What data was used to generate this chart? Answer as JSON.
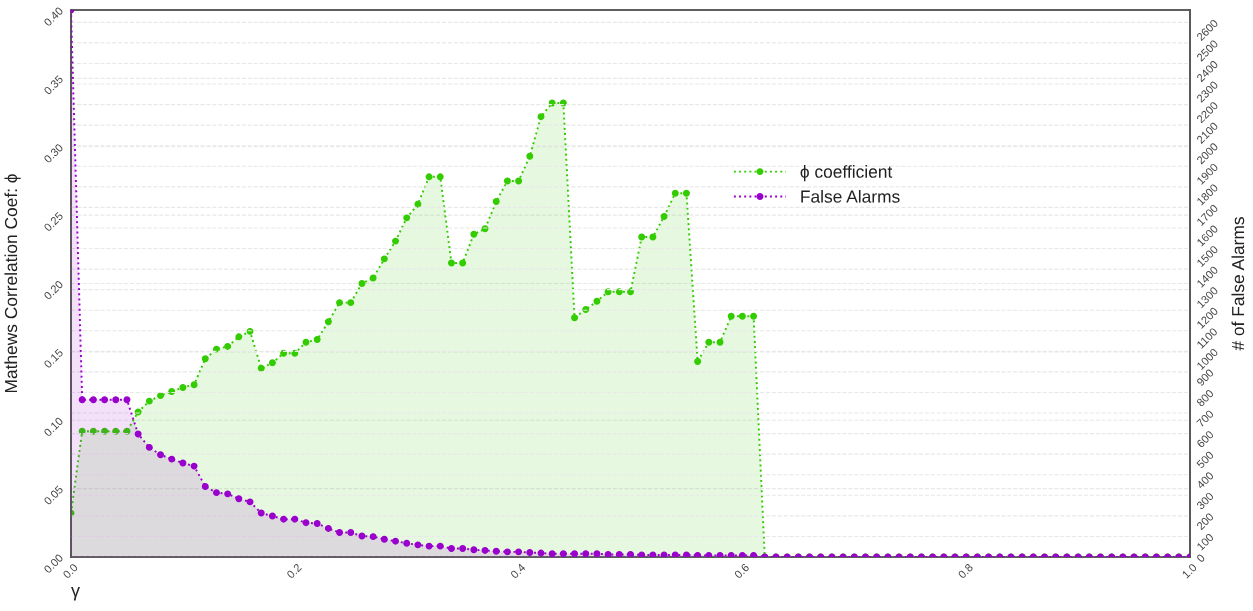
{
  "chart_data": {
    "type": "area",
    "xlabel": "γ",
    "ylabel": "Mathews Correlation Coef: ϕ",
    "y2label": "# of False Alarms",
    "x": [
      0.0,
      0.01,
      0.02,
      0.03,
      0.04,
      0.05,
      0.06,
      0.07,
      0.08,
      0.09,
      0.1,
      0.11,
      0.12,
      0.13,
      0.14,
      0.15,
      0.16,
      0.17,
      0.18,
      0.19,
      0.2,
      0.21,
      0.22,
      0.23,
      0.24,
      0.25,
      0.26,
      0.27,
      0.28,
      0.29,
      0.3,
      0.31,
      0.32,
      0.33,
      0.34,
      0.35,
      0.36,
      0.37,
      0.38,
      0.39,
      0.4,
      0.41,
      0.42,
      0.43,
      0.44,
      0.45,
      0.46,
      0.47,
      0.48,
      0.49,
      0.5,
      0.51,
      0.52,
      0.53,
      0.54,
      0.55,
      0.56,
      0.57,
      0.58,
      0.59,
      0.6,
      0.61,
      0.62,
      0.63,
      0.64,
      0.65,
      0.66,
      0.67,
      0.68,
      0.69,
      0.7,
      0.71,
      0.72,
      0.73,
      0.74,
      0.75,
      0.76,
      0.77,
      0.78,
      0.79,
      0.8,
      0.81,
      0.82,
      0.83,
      0.84,
      0.85,
      0.86,
      0.87,
      0.88,
      0.89,
      0.9,
      0.91,
      0.92,
      0.93,
      0.94,
      0.95,
      0.96,
      0.97,
      0.98,
      0.99,
      1.0
    ],
    "series": [
      {
        "name": "ϕ coefficient",
        "color": "#33cc00",
        "values": [
          0.032,
          0.092,
          0.092,
          0.092,
          0.092,
          0.092,
          0.106,
          0.114,
          0.118,
          0.121,
          0.124,
          0.126,
          0.145,
          0.152,
          0.154,
          0.161,
          0.165,
          0.138,
          0.142,
          0.149,
          0.149,
          0.157,
          0.159,
          0.172,
          0.186,
          0.186,
          0.2,
          0.204,
          0.218,
          0.231,
          0.248,
          0.258,
          0.278,
          0.278,
          0.215,
          0.215,
          0.236,
          0.24,
          0.26,
          0.275,
          0.275,
          0.293,
          0.322,
          0.332,
          0.332,
          0.175,
          0.181,
          0.187,
          0.194,
          0.194,
          0.194,
          0.234,
          0.234,
          0.249,
          0.266,
          0.266,
          0.143,
          0.157,
          0.157,
          0.176,
          0.176,
          0.176,
          0,
          0,
          0,
          0,
          0,
          0,
          0,
          0,
          0,
          0,
          0,
          0,
          0,
          0,
          0,
          0,
          0,
          0,
          0,
          0,
          0,
          0,
          0,
          0,
          0,
          0,
          0,
          0,
          0,
          0,
          0,
          0,
          0,
          0,
          0,
          0,
          0,
          0,
          0
        ]
      },
      {
        "name": "False Alarms",
        "color": "#9900cc",
        "axis": "y2",
        "values": [
          2660,
          765,
          765,
          765,
          765,
          765,
          598,
          533,
          497,
          476,
          457,
          442,
          343,
          313,
          307,
          283,
          268,
          214,
          199,
          184,
          184,
          167,
          163,
          139,
          119,
          119,
          102,
          99,
          86,
          77,
          67,
          59,
          53,
          53,
          41,
          41,
          35,
          32,
          28,
          25,
          25,
          22,
          19,
          16,
          16,
          16,
          16,
          16,
          12,
          12,
          12,
          10,
          10,
          10,
          10,
          10,
          8,
          8,
          8,
          8,
          8,
          8,
          0,
          0,
          0,
          0,
          0,
          0,
          0,
          0,
          0,
          0,
          0,
          0,
          0,
          0,
          0,
          0,
          0,
          0,
          0,
          0,
          0,
          0,
          0,
          0,
          0,
          0,
          0,
          0,
          0,
          0,
          0,
          0,
          0,
          0,
          0,
          0,
          0,
          0,
          0
        ]
      }
    ],
    "xlim": [
      0,
      1
    ],
    "xticks": [
      {
        "value": 0,
        "label": "0.0"
      },
      0.2,
      0.4,
      0.6,
      0.8,
      {
        "value": 1,
        "label": "1.0"
      }
    ],
    "ylim": [
      0,
      0.4
    ],
    "yticks": [
      {
        "value": 0,
        "label": "0.00"
      },
      0.05,
      {
        "value": 0.1,
        "label": "0.10"
      },
      0.15,
      {
        "value": 0.2,
        "label": "0.20"
      },
      0.25,
      {
        "value": 0.3,
        "label": "0.30"
      },
      0.35,
      {
        "value": 0.4,
        "label": "0.40"
      }
    ],
    "y2lim": [
      0,
      2660
    ],
    "y2ticks": [
      0,
      100,
      200,
      300,
      400,
      500,
      600,
      700,
      800,
      900,
      1000,
      1100,
      1200,
      1300,
      1400,
      1500,
      1600,
      1700,
      1800,
      1900,
      2000,
      2100,
      2200,
      2300,
      2400,
      2500,
      2600
    ],
    "grid": "y",
    "legend": "top right",
    "marker": "circle",
    "line_style": "dotted"
  }
}
